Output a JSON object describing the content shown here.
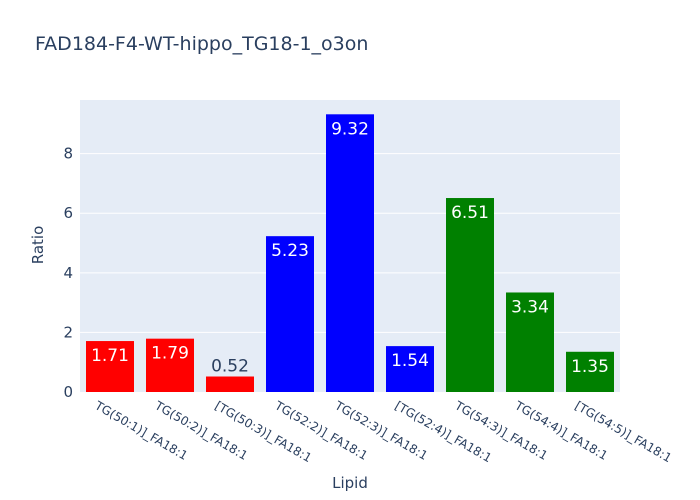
{
  "chart_data": {
    "type": "bar",
    "title": "FAD184-F4-WT-hippo_TG18-1_o3on",
    "xlabel": "Lipid",
    "ylabel": "Ratio",
    "ylim": [
      0,
      9.8
    ],
    "yticks": [
      0,
      2,
      4,
      6,
      8
    ],
    "grid": true,
    "legend": "none",
    "categories": [
      "TG(50:1)]_FA18:1",
      "TG(50:2)]_FA18:1",
      "[TG(50:3)]_FA18:1",
      "TG(52:2)]_FA18:1",
      "TG(52:3)]_FA18:1",
      "[TG(52:4)]_FA18:1",
      "TG(54:3)]_FA18:1",
      "TG(54:4)]_FA18:1",
      "[TG(54:5)]_FA18:1"
    ],
    "values": [
      1.71,
      1.79,
      0.52,
      5.23,
      9.32,
      1.54,
      6.51,
      3.34,
      1.35
    ],
    "labels": [
      "1.71",
      "1.79",
      "0.52",
      "5.23",
      "9.32",
      "1.54",
      "6.51",
      "3.34",
      "1.35"
    ],
    "colors": [
      "#ff0000",
      "#ff0000",
      "#ff0000",
      "#0000ff",
      "#0000ff",
      "#0000ff",
      "#008000",
      "#008000",
      "#008000"
    ],
    "plot_bg": "#e5ecf6",
    "text_color": "#2a3f5f"
  }
}
